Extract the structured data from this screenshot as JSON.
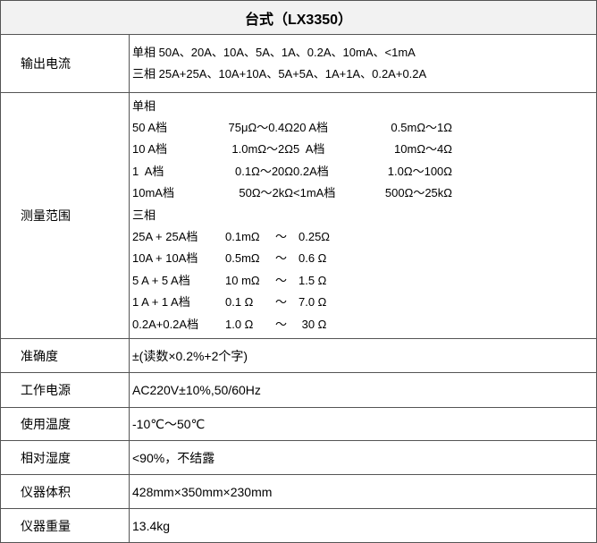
{
  "title": "台式（LX3350）",
  "rows": {
    "output_current": {
      "label": "输出电流",
      "single": "单相 50A、20A、10A、5A、1A、0.2A、10mA、<1mA",
      "three": "三相 25A+25A、10A+10A、5A+5A、1A+1A、0.2A+0.2A"
    },
    "range": {
      "label": "测量范围",
      "single_title": "单相",
      "single": [
        [
          "50 A档",
          "75μΩ～0.4Ω",
          "20 A档",
          "0.5mΩ～1Ω"
        ],
        [
          "10 A档",
          "1.0mΩ～2Ω",
          "5  A档",
          "10mΩ～4Ω"
        ],
        [
          "1  A档",
          "0.1Ω～20Ω",
          "0.2A档",
          "1.0Ω～100Ω"
        ],
        [
          "10mA档",
          "50Ω～2kΩ",
          "<1mA档",
          "500Ω～25kΩ"
        ]
      ],
      "three_title": "三相",
      "three": [
        [
          "25A + 25A档",
          "0.1mΩ",
          "～",
          "0.25Ω"
        ],
        [
          "10A + 10A档",
          "0.5mΩ",
          "～",
          "0.6 Ω"
        ],
        [
          "5 A + 5 A档",
          "10 mΩ",
          "～",
          "1.5 Ω"
        ],
        [
          "1 A + 1 A档",
          "0.1 Ω",
          "～",
          "7.0 Ω"
        ],
        [
          "0.2A+0.2A档",
          "1.0 Ω",
          "～",
          " 30 Ω"
        ]
      ]
    },
    "accuracy": {
      "label": "准确度",
      "value": "±(读数×0.2%+2个字)"
    },
    "power": {
      "label": "工作电源",
      "value": "AC220V±10%,50/60Hz"
    },
    "temperature": {
      "label": "使用温度",
      "value": "-10℃～50℃"
    },
    "humidity": {
      "label": "相对湿度",
      "value": "<90%，不结露"
    },
    "volume": {
      "label": "仪器体积",
      "value": "428mm×350mm×230mm"
    },
    "weight": {
      "label": "仪器重量",
      "value": "13.4kg"
    }
  }
}
